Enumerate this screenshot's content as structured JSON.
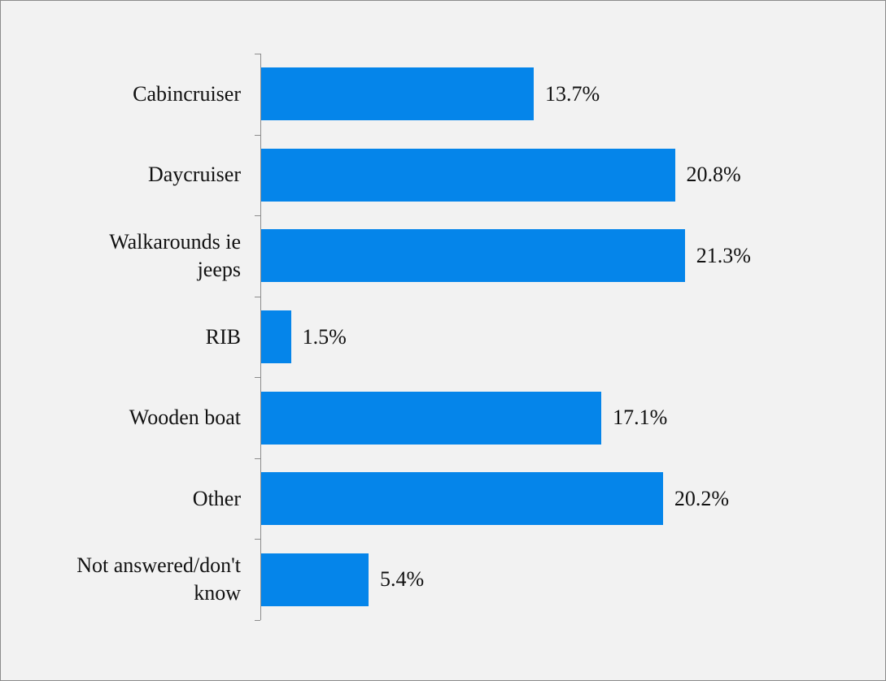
{
  "chart_data": {
    "type": "bar",
    "orientation": "horizontal",
    "categories": [
      "Cabincruiser",
      "Daycruiser",
      "Walkarounds ie jeeps",
      "RIB",
      "Wooden boat",
      "Other",
      "Not answered/don't know"
    ],
    "values": [
      13.7,
      20.8,
      21.3,
      1.5,
      17.1,
      20.2,
      5.4
    ],
    "value_labels": [
      "13.7%",
      "20.8%",
      "21.3%",
      "1.5%",
      "17.1%",
      "20.2%",
      "5.4%"
    ],
    "color": "#0585ea"
  }
}
